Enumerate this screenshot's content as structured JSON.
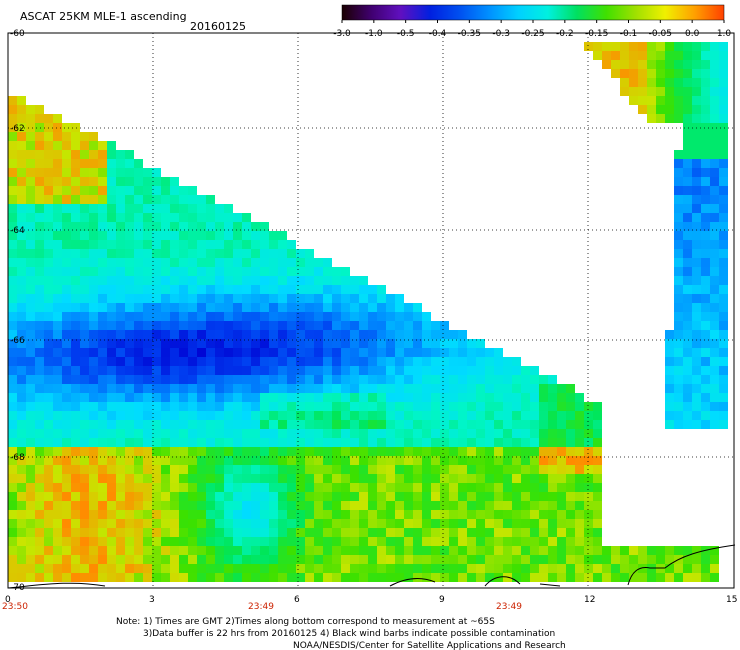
{
  "header": {
    "title": "ASCAT 25KM MLE-1 ascending",
    "date": "20160125"
  },
  "colorbar": {
    "labels": [
      "-3.0",
      "-1.0",
      "-0.5",
      "-0.4",
      "-0.35",
      "-0.3",
      "-0.25",
      "-0.2",
      "-0.15",
      "-0.1",
      "-0.05",
      "0.0",
      "1.0"
    ],
    "colors": [
      "#1a0000",
      "#400070",
      "#6010c0",
      "#0020e0",
      "#0050f0",
      "#0090ff",
      "#00d0ff",
      "#00f0e0",
      "#00e060",
      "#40e000",
      "#a0e000",
      "#f0f000",
      "#ffa000",
      "#ff4000"
    ]
  },
  "map": {
    "lat_labels": [
      "-60",
      "-62",
      "-64",
      "-66",
      "-68",
      "-70"
    ],
    "lon_labels": [
      "0",
      "3",
      "6",
      "9",
      "12",
      "15"
    ],
    "time_labels": [
      "23:50",
      "23:49",
      "23:49"
    ],
    "time_color": "#cc2200"
  },
  "notes": {
    "line1": "Note: 1) Times are GMT 2)Times along bottom correspond to measurement at ~65S",
    "line2": "3)Data buffer is 22 hrs from 20160125 4) Black wind barbs indicate possible contamination",
    "line3": "NOAA/NESDIS/Center for Satellite Applications and Research"
  }
}
